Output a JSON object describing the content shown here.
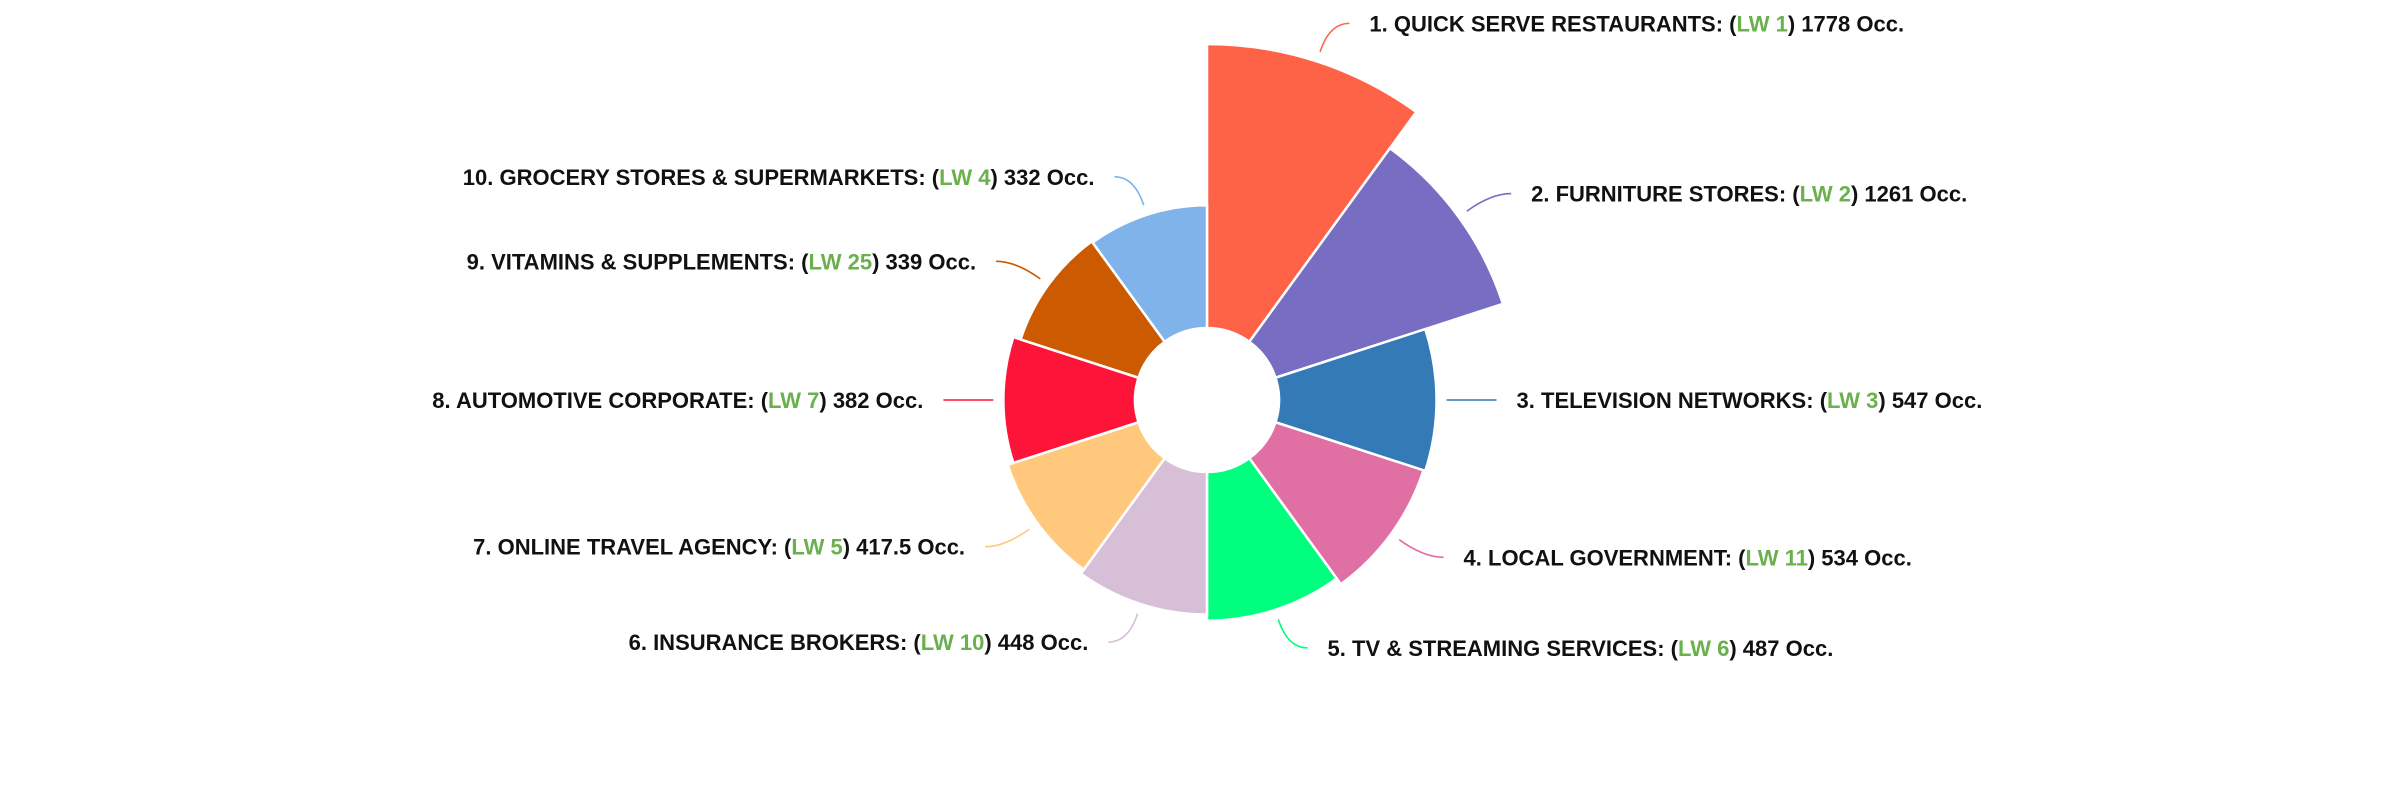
{
  "chart_data": {
    "type": "pie",
    "variant": "polar-area-rose",
    "legend": "none",
    "slices": [
      {
        "rank": "1.",
        "name": "QUICK SERVE RESTAURANTS",
        "lw": "LW 1",
        "value": 1778,
        "value_label": "1778",
        "unit": "Occ.",
        "color": "#ff6347"
      },
      {
        "rank": "2.",
        "name": "FURNITURE STORES",
        "lw": "LW 2",
        "value": 1261,
        "value_label": "1261",
        "unit": "Occ.",
        "color": "#776dc2"
      },
      {
        "rank": "3.",
        "name": "TELEVISION NETWORKS",
        "lw": "LW 3",
        "value": 547,
        "value_label": "547",
        "unit": "Occ.",
        "color": "#337ab7"
      },
      {
        "rank": "4.",
        "name": "LOCAL GOVERNMENT",
        "lw": "LW 11",
        "value": 534,
        "value_label": "534",
        "unit": "Occ.",
        "color": "#e06fa3"
      },
      {
        "rank": "5.",
        "name": "TV & STREAMING SERVICES",
        "lw": "LW 6",
        "value": 487,
        "value_label": "487",
        "unit": "Occ.",
        "color": "#00ff7f"
      },
      {
        "rank": "6.",
        "name": "INSURANCE BROKERS",
        "lw": "LW 10",
        "value": 448,
        "value_label": "448",
        "unit": "Occ.",
        "color": "#d8bfd8"
      },
      {
        "rank": "7.",
        "name": "ONLINE TRAVEL AGENCY",
        "lw": "LW 5",
        "value": 417.5,
        "value_label": "417.5",
        "unit": "Occ.",
        "color": "#ffc87c"
      },
      {
        "rank": "8.",
        "name": "AUTOMOTIVE CORPORATE",
        "lw": "LW 7",
        "value": 382,
        "value_label": "382",
        "unit": "Occ.",
        "color": "#ff1439"
      },
      {
        "rank": "9.",
        "name": "VITAMINS & SUPPLEMENTS",
        "lw": "LW 25",
        "value": 339,
        "value_label": "339",
        "unit": "Occ.",
        "color": "#cc5a00"
      },
      {
        "rank": "10.",
        "name": "GROCERY STORES & SUPERMARKETS",
        "lw": "LW 4",
        "value": 332,
        "value_label": "332",
        "unit": "Occ.",
        "color": "#7fb3ea"
      }
    ],
    "label_color_lw": "#6ab04c"
  }
}
